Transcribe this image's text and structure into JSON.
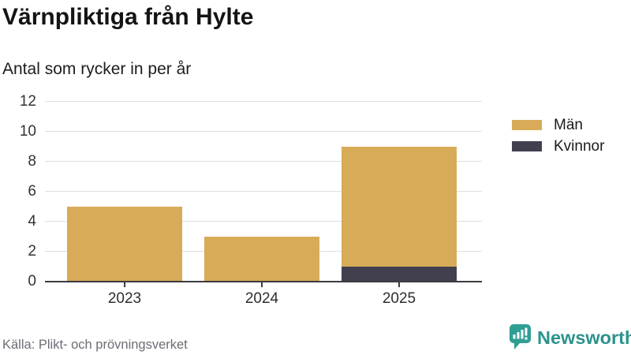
{
  "header": {
    "title": "Värnpliktiga från Hylte",
    "subtitle": "Antal som rycker in per år"
  },
  "footer": {
    "source": "Källa: Plikt- och prövningsverket",
    "brand": "Newsworthy"
  },
  "colors": {
    "men": "#d8ab58",
    "women": "#42404f",
    "axis": "#3b3b41",
    "grid": "#dfdfdf",
    "brand_teal": "#2f9e94"
  },
  "chart_data": {
    "type": "bar",
    "stacked": true,
    "title": "Värnpliktiga från Hylte",
    "subtitle": "Antal som rycker in per år",
    "categories": [
      "2023",
      "2024",
      "2025"
    ],
    "series": [
      {
        "name": "Män",
        "color": "#d8ab58",
        "values": [
          5,
          3,
          8
        ]
      },
      {
        "name": "Kvinnor",
        "color": "#42404f",
        "values": [
          0,
          0,
          1
        ]
      }
    ],
    "stack_order_bottom_to_top": [
      "Kvinnor",
      "Män"
    ],
    "totals": [
      5,
      3,
      9
    ],
    "ylim": [
      0,
      12
    ],
    "yticks": [
      0,
      2,
      4,
      6,
      8,
      10,
      12
    ],
    "xlabel": "",
    "ylabel": "",
    "grid": true,
    "legend_position": "right",
    "source": "Källa: Plikt- och prövningsverket"
  }
}
